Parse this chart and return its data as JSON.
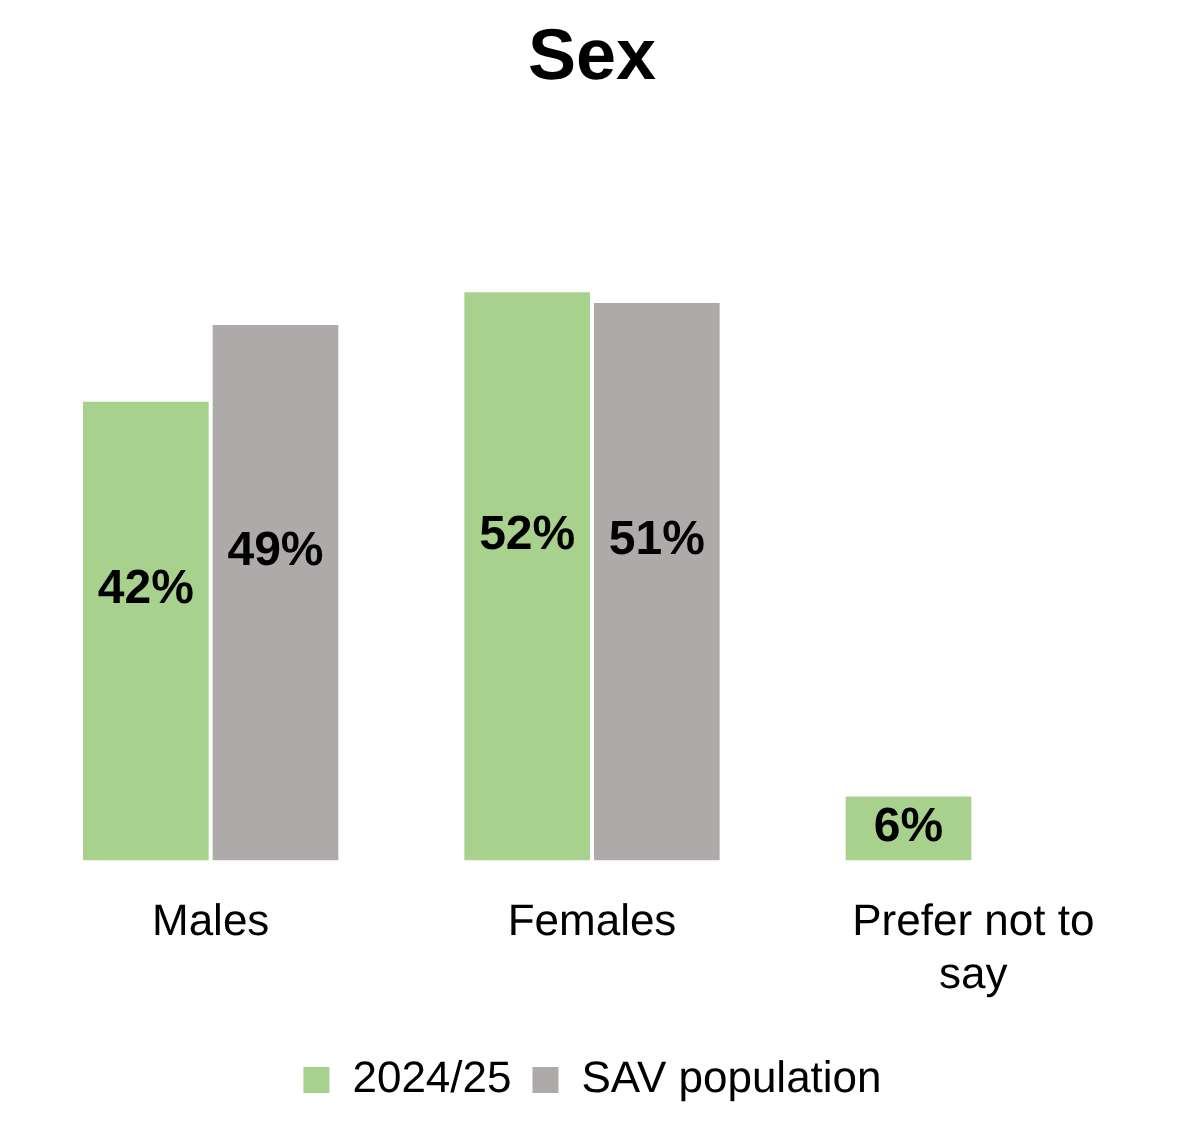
{
  "chart_data": {
    "type": "bar",
    "title": "Sex",
    "categories": [
      "Males",
      "Females",
      "Prefer not to say"
    ],
    "series": [
      {
        "name": "2024/25",
        "color": "#a9d18e",
        "values": [
          42,
          52,
          6
        ],
        "value_labels": [
          "42%",
          "52%",
          "6%"
        ]
      },
      {
        "name": "SAV population",
        "color": "#aeaaaa",
        "values": [
          49,
          51,
          null
        ],
        "value_labels": [
          "49%",
          "51%",
          null
        ]
      }
    ],
    "legend": "bottom",
    "grid": false
  }
}
